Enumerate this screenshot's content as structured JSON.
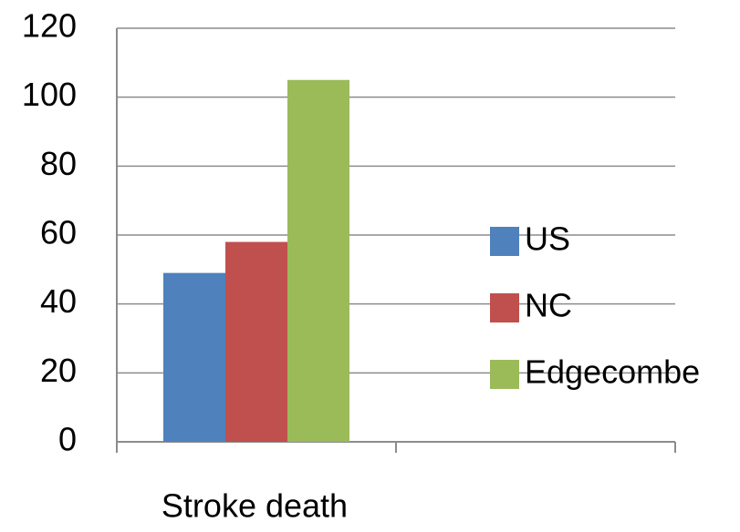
{
  "chart_data": {
    "type": "bar",
    "categories": [
      "Stroke death",
      null
    ],
    "series": [
      {
        "name": "US",
        "color": "#4f81bd",
        "values": [
          49,
          null
        ]
      },
      {
        "name": "NC",
        "color": "#c0504d",
        "values": [
          58,
          null
        ]
      },
      {
        "name": "Edgecombe",
        "color": "#9bbb59",
        "values": [
          105,
          null
        ]
      }
    ],
    "ylim": [
      0,
      120
    ],
    "yticks": [
      0,
      20,
      40,
      60,
      80,
      100,
      120
    ],
    "grid": true,
    "legend": "right"
  }
}
